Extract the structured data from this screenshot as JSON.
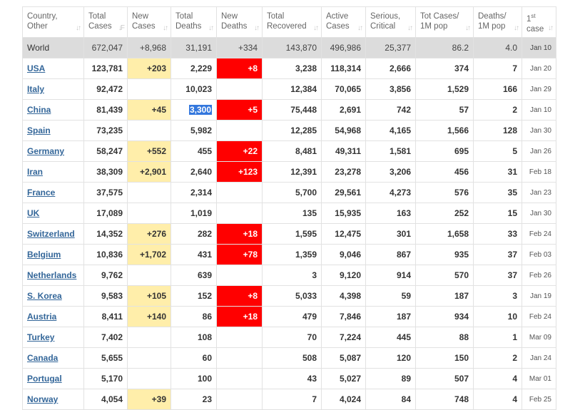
{
  "headers": [
    {
      "line1": "Country,",
      "line2": "Other"
    },
    {
      "line1": "Total",
      "line2": "Cases"
    },
    {
      "line1": "New",
      "line2": "Cases"
    },
    {
      "line1": "Total",
      "line2": "Deaths"
    },
    {
      "line1": "New",
      "line2": "Deaths"
    },
    {
      "line1": "Total",
      "line2": "Recovered"
    },
    {
      "line1": "Active",
      "line2": "Cases"
    },
    {
      "line1": "Serious,",
      "line2": "Critical"
    },
    {
      "line1": "Tot Cases/",
      "line2": "1M pop"
    },
    {
      "line1": "Deaths/",
      "line2": "1M pop"
    },
    {
      "line1": "1",
      "sup": "st",
      "line2": "case"
    }
  ],
  "sort_icons": {
    "default": "↓↑",
    "active": "↓F"
  },
  "world": {
    "country": "World",
    "total_cases": "672,047",
    "new_cases": "+8,968",
    "total_deaths": "31,191",
    "new_deaths": "+334",
    "total_recovered": "143,870",
    "active_cases": "496,986",
    "serious": "25,377",
    "cases_per_1m": "86.2",
    "deaths_per_1m": "4.0",
    "first_case": "Jan 10"
  },
  "rows": [
    {
      "country": "USA",
      "total_cases": "123,781",
      "new_cases": "+203",
      "total_deaths": "2,229",
      "new_deaths": "+8",
      "total_recovered": "3,238",
      "active_cases": "118,314",
      "serious": "2,666",
      "cases_per_1m": "374",
      "deaths_per_1m": "7",
      "first_case": "Jan 20"
    },
    {
      "country": "Italy",
      "total_cases": "92,472",
      "new_cases": "",
      "total_deaths": "10,023",
      "new_deaths": "",
      "total_recovered": "12,384",
      "active_cases": "70,065",
      "serious": "3,856",
      "cases_per_1m": "1,529",
      "deaths_per_1m": "166",
      "first_case": "Jan 29"
    },
    {
      "country": "China",
      "total_cases": "81,439",
      "new_cases": "+45",
      "total_deaths": "3,300",
      "new_deaths": "+5",
      "total_recovered": "75,448",
      "active_cases": "2,691",
      "serious": "742",
      "cases_per_1m": "57",
      "deaths_per_1m": "2",
      "first_case": "Jan 10"
    },
    {
      "country": "Spain",
      "total_cases": "73,235",
      "new_cases": "",
      "total_deaths": "5,982",
      "new_deaths": "",
      "total_recovered": "12,285",
      "active_cases": "54,968",
      "serious": "4,165",
      "cases_per_1m": "1,566",
      "deaths_per_1m": "128",
      "first_case": "Jan 30"
    },
    {
      "country": "Germany",
      "total_cases": "58,247",
      "new_cases": "+552",
      "total_deaths": "455",
      "new_deaths": "+22",
      "total_recovered": "8,481",
      "active_cases": "49,311",
      "serious": "1,581",
      "cases_per_1m": "695",
      "deaths_per_1m": "5",
      "first_case": "Jan 26"
    },
    {
      "country": "Iran",
      "total_cases": "38,309",
      "new_cases": "+2,901",
      "total_deaths": "2,640",
      "new_deaths": "+123",
      "total_recovered": "12,391",
      "active_cases": "23,278",
      "serious": "3,206",
      "cases_per_1m": "456",
      "deaths_per_1m": "31",
      "first_case": "Feb 18"
    },
    {
      "country": "France",
      "total_cases": "37,575",
      "new_cases": "",
      "total_deaths": "2,314",
      "new_deaths": "",
      "total_recovered": "5,700",
      "active_cases": "29,561",
      "serious": "4,273",
      "cases_per_1m": "576",
      "deaths_per_1m": "35",
      "first_case": "Jan 23"
    },
    {
      "country": "UK",
      "total_cases": "17,089",
      "new_cases": "",
      "total_deaths": "1,019",
      "new_deaths": "",
      "total_recovered": "135",
      "active_cases": "15,935",
      "serious": "163",
      "cases_per_1m": "252",
      "deaths_per_1m": "15",
      "first_case": "Jan 30"
    },
    {
      "country": "Switzerland",
      "total_cases": "14,352",
      "new_cases": "+276",
      "total_deaths": "282",
      "new_deaths": "+18",
      "total_recovered": "1,595",
      "active_cases": "12,475",
      "serious": "301",
      "cases_per_1m": "1,658",
      "deaths_per_1m": "33",
      "first_case": "Feb 24"
    },
    {
      "country": "Belgium",
      "total_cases": "10,836",
      "new_cases": "+1,702",
      "total_deaths": "431",
      "new_deaths": "+78",
      "total_recovered": "1,359",
      "active_cases": "9,046",
      "serious": "867",
      "cases_per_1m": "935",
      "deaths_per_1m": "37",
      "first_case": "Feb 03"
    },
    {
      "country": "Netherlands",
      "total_cases": "9,762",
      "new_cases": "",
      "total_deaths": "639",
      "new_deaths": "",
      "total_recovered": "3",
      "active_cases": "9,120",
      "serious": "914",
      "cases_per_1m": "570",
      "deaths_per_1m": "37",
      "first_case": "Feb 26"
    },
    {
      "country": "S. Korea",
      "total_cases": "9,583",
      "new_cases": "+105",
      "total_deaths": "152",
      "new_deaths": "+8",
      "total_recovered": "5,033",
      "active_cases": "4,398",
      "serious": "59",
      "cases_per_1m": "187",
      "deaths_per_1m": "3",
      "first_case": "Jan 19"
    },
    {
      "country": "Austria",
      "total_cases": "8,411",
      "new_cases": "+140",
      "total_deaths": "86",
      "new_deaths": "+18",
      "total_recovered": "479",
      "active_cases": "7,846",
      "serious": "187",
      "cases_per_1m": "934",
      "deaths_per_1m": "10",
      "first_case": "Feb 24"
    },
    {
      "country": "Turkey",
      "total_cases": "7,402",
      "new_cases": "",
      "total_deaths": "108",
      "new_deaths": "",
      "total_recovered": "70",
      "active_cases": "7,224",
      "serious": "445",
      "cases_per_1m": "88",
      "deaths_per_1m": "1",
      "first_case": "Mar 09"
    },
    {
      "country": "Canada",
      "total_cases": "5,655",
      "new_cases": "",
      "total_deaths": "60",
      "new_deaths": "",
      "total_recovered": "508",
      "active_cases": "5,087",
      "serious": "120",
      "cases_per_1m": "150",
      "deaths_per_1m": "2",
      "first_case": "Jan 24"
    },
    {
      "country": "Portugal",
      "total_cases": "5,170",
      "new_cases": "",
      "total_deaths": "100",
      "new_deaths": "",
      "total_recovered": "43",
      "active_cases": "5,027",
      "serious": "89",
      "cases_per_1m": "507",
      "deaths_per_1m": "4",
      "first_case": "Mar 01"
    },
    {
      "country": "Norway",
      "total_cases": "4,054",
      "new_cases": "+39",
      "total_deaths": "23",
      "new_deaths": "",
      "total_recovered": "7",
      "active_cases": "4,024",
      "serious": "84",
      "cases_per_1m": "748",
      "deaths_per_1m": "4",
      "first_case": "Feb 25"
    }
  ],
  "selected": {
    "row_index": 2,
    "column": "total_deaths"
  },
  "colors": {
    "new_cases_bg": "#ffeeaa",
    "new_deaths_bg": "#ff0000",
    "world_bg": "#dcdcdc",
    "link": "#336699",
    "selection": "#3377dd"
  }
}
